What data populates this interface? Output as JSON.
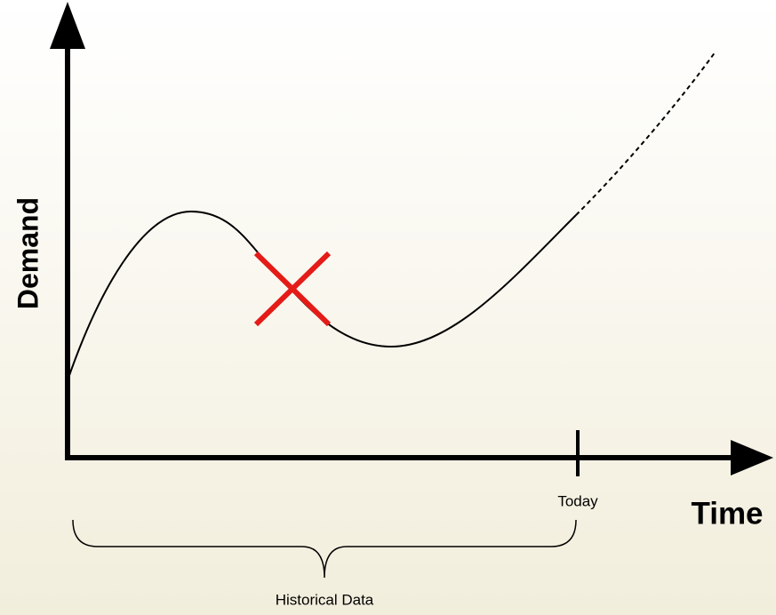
{
  "y_axis_label": "Demand",
  "x_axis_label": "Time",
  "marker_label": "Today",
  "brace_label": "Historical Data"
}
